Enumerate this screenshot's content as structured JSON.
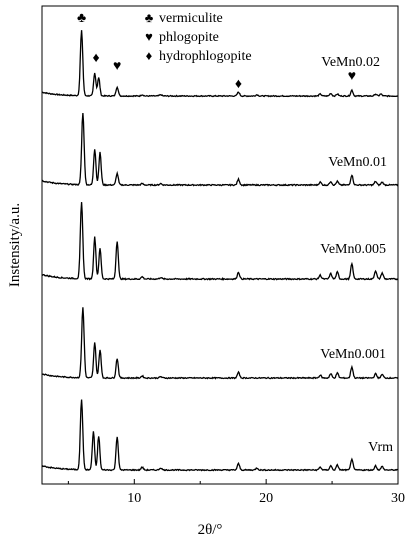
{
  "chart_data": {
    "type": "line",
    "title": "",
    "xlabel": "2θ/°",
    "ylabel": "Instensity/a.u.",
    "xlim": [
      3,
      30
    ],
    "x_ticks": [
      10,
      20,
      30
    ],
    "grid": false,
    "legend": {
      "placement": "top-center",
      "entries": [
        {
          "symbol": "♣",
          "label": "vermiculite"
        },
        {
          "symbol": "♥",
          "label": "phlogopite"
        },
        {
          "symbol": "♦",
          "label": "hydrophlogopite"
        }
      ]
    },
    "series": [
      {
        "name": "VeMn0.02",
        "baseline": 0,
        "peaks": [
          [
            6.0,
            100
          ],
          [
            7.0,
            35
          ],
          [
            7.3,
            28
          ],
          [
            8.7,
            14
          ],
          [
            10.6,
            2
          ],
          [
            12.0,
            2
          ],
          [
            17.9,
            6
          ],
          [
            19.3,
            2
          ],
          [
            24.1,
            3
          ],
          [
            24.9,
            4
          ],
          [
            25.4,
            3
          ],
          [
            26.5,
            9
          ],
          [
            28.3,
            3
          ],
          [
            28.7,
            3
          ]
        ],
        "markers": [
          {
            "symbol": "♣",
            "x": 6.0
          },
          {
            "symbol": "♦",
            "x": 7.1
          },
          {
            "symbol": "♥",
            "x": 8.7
          },
          {
            "symbol": "♦",
            "x": 17.9
          },
          {
            "symbol": "♥",
            "x": 26.5
          }
        ]
      },
      {
        "name": "VeMn0.01",
        "baseline": 0,
        "peaks": [
          [
            6.1,
            100
          ],
          [
            7.0,
            50
          ],
          [
            7.4,
            45
          ],
          [
            8.7,
            16
          ],
          [
            10.6,
            2
          ],
          [
            12.0,
            2
          ],
          [
            17.9,
            8
          ],
          [
            24.1,
            4
          ],
          [
            24.9,
            5
          ],
          [
            25.4,
            5
          ],
          [
            26.5,
            14
          ],
          [
            28.3,
            5
          ],
          [
            28.8,
            4
          ]
        ]
      },
      {
        "name": "VeMn0.005",
        "baseline": 0,
        "peaks": [
          [
            6.0,
            100
          ],
          [
            7.0,
            55
          ],
          [
            7.4,
            40
          ],
          [
            8.7,
            50
          ],
          [
            10.6,
            3
          ],
          [
            12.0,
            2
          ],
          [
            17.9,
            9
          ],
          [
            24.1,
            5
          ],
          [
            24.9,
            7
          ],
          [
            25.4,
            9
          ],
          [
            26.5,
            20
          ],
          [
            28.3,
            11
          ],
          [
            28.8,
            8
          ]
        ]
      },
      {
        "name": "VeMn0.001",
        "baseline": 0,
        "peaks": [
          [
            6.1,
            100
          ],
          [
            7.0,
            50
          ],
          [
            7.4,
            40
          ],
          [
            8.7,
            28
          ],
          [
            10.6,
            3
          ],
          [
            12.0,
            2
          ],
          [
            17.9,
            8
          ],
          [
            24.1,
            4
          ],
          [
            24.9,
            6
          ],
          [
            25.4,
            7
          ],
          [
            26.5,
            16
          ],
          [
            28.3,
            6
          ],
          [
            28.8,
            5
          ]
        ]
      },
      {
        "name": "Vrm",
        "baseline": 0,
        "peaks": [
          [
            6.0,
            100
          ],
          [
            6.9,
            55
          ],
          [
            7.3,
            48
          ],
          [
            8.7,
            48
          ],
          [
            10.6,
            4
          ],
          [
            12.0,
            3
          ],
          [
            17.9,
            9
          ],
          [
            19.3,
            3
          ],
          [
            24.1,
            4
          ],
          [
            24.9,
            6
          ],
          [
            25.4,
            7
          ],
          [
            26.5,
            16
          ],
          [
            28.3,
            6
          ],
          [
            28.8,
            5
          ]
        ]
      }
    ]
  }
}
